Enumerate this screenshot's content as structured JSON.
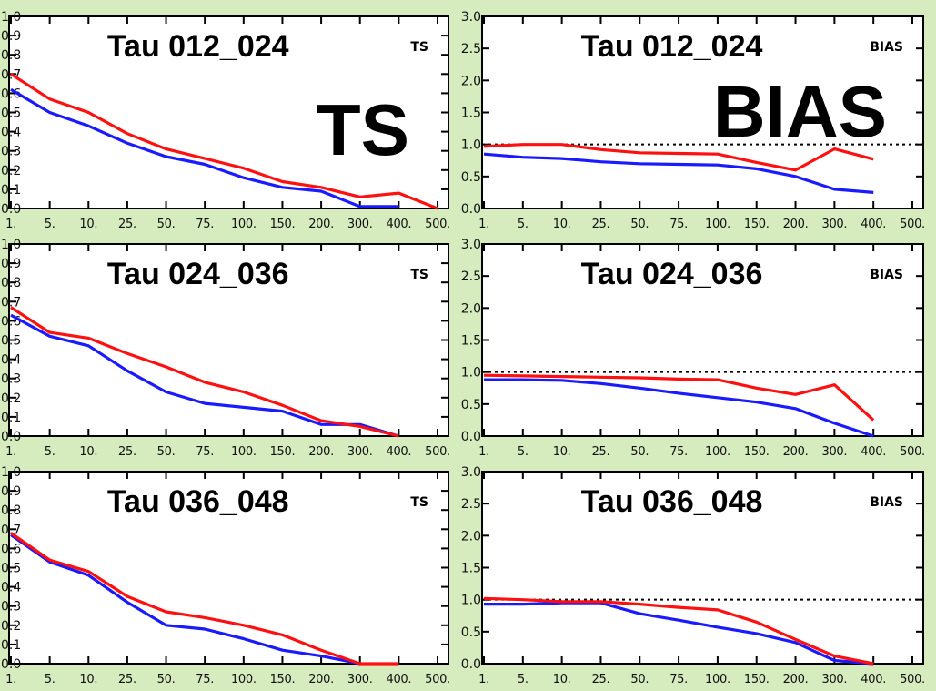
{
  "colors": {
    "background": "#d6ecbe",
    "plot_background": "#ffffff",
    "series_red": "#ff1010",
    "series_blue": "#1a1aff"
  },
  "chart_data": [
    {
      "type": "line",
      "panel_title": "Tau 012_024",
      "panel_tag": "TS",
      "big_label": "TS",
      "x": [
        "1.",
        "5.",
        "10.",
        "25.",
        "50.",
        "75.",
        "100.",
        "150.",
        "200.",
        "300.",
        "400.",
        "500."
      ],
      "ylim": [
        0,
        1
      ],
      "yticks": [
        "0.0",
        "0.1",
        "0.2",
        "0.3",
        "0.4",
        "0.5",
        "0.6",
        "0.7",
        "0.8",
        "0.9",
        "1.0"
      ],
      "reference_line": null,
      "series": [
        {
          "color": "red",
          "values": [
            0.7,
            0.57,
            0.5,
            0.39,
            0.31,
            0.26,
            0.21,
            0.14,
            0.11,
            0.06,
            0.08,
            0.0
          ]
        },
        {
          "color": "blue",
          "values": [
            0.62,
            0.5,
            0.43,
            0.34,
            0.27,
            0.23,
            0.16,
            0.11,
            0.09,
            0.01,
            0.01,
            null
          ]
        }
      ]
    },
    {
      "type": "line",
      "panel_title": "Tau 012_024",
      "panel_tag": "BIAS",
      "big_label": "BIAS",
      "x": [
        "1.",
        "5.",
        "10.",
        "25.",
        "50.",
        "75.",
        "100.",
        "150.",
        "200.",
        "300.",
        "400.",
        "500."
      ],
      "ylim": [
        0,
        3
      ],
      "yticks": [
        "0.0",
        "0.5",
        "1.0",
        "1.5",
        "2.0",
        "2.5",
        "3.0"
      ],
      "reference_line": 1.0,
      "series": [
        {
          "color": "red",
          "values": [
            0.97,
            1.0,
            1.0,
            0.92,
            0.87,
            0.86,
            0.85,
            0.72,
            0.6,
            0.93,
            0.77,
            null
          ]
        },
        {
          "color": "blue",
          "values": [
            0.85,
            0.8,
            0.78,
            0.73,
            0.7,
            0.69,
            0.68,
            0.62,
            0.5,
            0.3,
            0.25,
            null
          ]
        }
      ]
    },
    {
      "type": "line",
      "panel_title": "Tau 024_036",
      "panel_tag": "TS",
      "big_label": "",
      "x": [
        "1.",
        "5.",
        "10.",
        "25.",
        "50.",
        "75.",
        "100.",
        "150.",
        "200.",
        "300.",
        "400.",
        "500."
      ],
      "ylim": [
        0,
        1
      ],
      "yticks": [
        "0.0",
        "0.1",
        "0.2",
        "0.3",
        "0.4",
        "0.5",
        "0.6",
        "0.7",
        "0.8",
        "0.9",
        "1.0"
      ],
      "reference_line": null,
      "series": [
        {
          "color": "red",
          "values": [
            0.67,
            0.54,
            0.51,
            0.43,
            0.36,
            0.28,
            0.23,
            0.16,
            0.08,
            0.05,
            0.0,
            null
          ]
        },
        {
          "color": "blue",
          "values": [
            0.63,
            0.52,
            0.47,
            0.34,
            0.23,
            0.17,
            0.15,
            0.13,
            0.06,
            0.06,
            0.0,
            null
          ]
        }
      ]
    },
    {
      "type": "line",
      "panel_title": "Tau 024_036",
      "panel_tag": "BIAS",
      "big_label": "",
      "x": [
        "1.",
        "5.",
        "10.",
        "25.",
        "50.",
        "75.",
        "100.",
        "150.",
        "200.",
        "300.",
        "400.",
        "500."
      ],
      "ylim": [
        0,
        3
      ],
      "yticks": [
        "0.0",
        "0.5",
        "1.0",
        "1.5",
        "2.0",
        "2.5",
        "3.0"
      ],
      "reference_line": 1.0,
      "series": [
        {
          "color": "red",
          "values": [
            0.95,
            0.94,
            0.93,
            0.92,
            0.91,
            0.89,
            0.88,
            0.75,
            0.65,
            0.8,
            0.25,
            null
          ]
        },
        {
          "color": "blue",
          "values": [
            0.88,
            0.88,
            0.87,
            0.82,
            0.75,
            0.67,
            0.6,
            0.53,
            0.43,
            0.2,
            0.0,
            null
          ]
        }
      ]
    },
    {
      "type": "line",
      "panel_title": "Tau 036_048",
      "panel_tag": "TS",
      "big_label": "",
      "x": [
        "1.",
        "5.",
        "10.",
        "25.",
        "50.",
        "75.",
        "100.",
        "150.",
        "200.",
        "300.",
        "400.",
        "500."
      ],
      "ylim": [
        0,
        1
      ],
      "yticks": [
        "0.0",
        "0.1",
        "0.2",
        "0.3",
        "0.4",
        "0.5",
        "0.6",
        "0.7",
        "0.8",
        "0.9",
        "1.0"
      ],
      "reference_line": null,
      "series": [
        {
          "color": "red",
          "values": [
            0.68,
            0.54,
            0.48,
            0.35,
            0.27,
            0.24,
            0.2,
            0.15,
            0.07,
            0.0,
            0.0,
            null
          ]
        },
        {
          "color": "blue",
          "values": [
            0.67,
            0.53,
            0.46,
            0.32,
            0.2,
            0.18,
            0.13,
            0.07,
            0.04,
            0.0,
            null,
            null
          ]
        }
      ]
    },
    {
      "type": "line",
      "panel_title": "Tau 036_048",
      "panel_tag": "BIAS",
      "big_label": "",
      "x": [
        "1.",
        "5.",
        "10.",
        "25.",
        "50.",
        "75.",
        "100.",
        "150.",
        "200.",
        "300.",
        "400.",
        "500."
      ],
      "ylim": [
        0,
        3
      ],
      "yticks": [
        "0.0",
        "0.5",
        "1.0",
        "1.5",
        "2.0",
        "2.5",
        "3.0"
      ],
      "reference_line": 1.0,
      "series": [
        {
          "color": "red",
          "values": [
            1.02,
            1.0,
            0.97,
            0.97,
            0.93,
            0.88,
            0.84,
            0.65,
            0.38,
            0.12,
            0.0,
            null
          ]
        },
        {
          "color": "blue",
          "values": [
            0.93,
            0.93,
            0.95,
            0.95,
            0.78,
            0.68,
            0.57,
            0.47,
            0.33,
            0.05,
            0.0,
            null
          ]
        }
      ]
    }
  ]
}
